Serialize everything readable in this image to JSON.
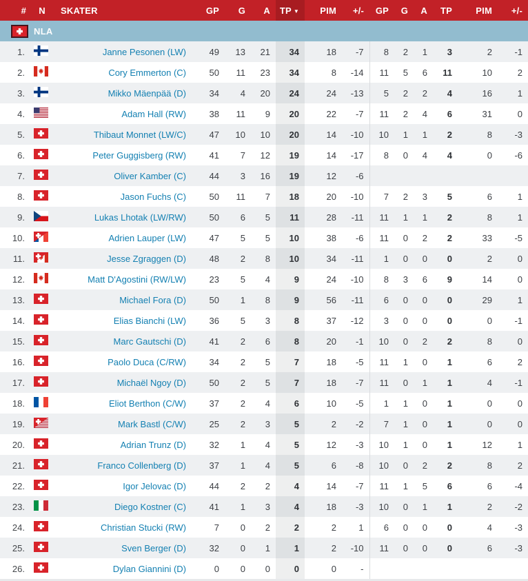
{
  "colors": {
    "header_bg": "#c22127",
    "header_sorted_bg": "#a81c21",
    "league_band_bg": "#92bccf",
    "row_alt_bg": "#eef0f2",
    "link_color": "#1480b2",
    "tp_column_tint": "rgba(33,37,45,0.075)",
    "group_divider": "#d9dbde"
  },
  "table": {
    "sort": {
      "column": "tp1",
      "direction": "desc",
      "arrow": "▼"
    },
    "columns": [
      {
        "id": "rank",
        "label": "#"
      },
      {
        "id": "flag",
        "label": "N"
      },
      {
        "id": "name",
        "label": "SKATER"
      },
      {
        "id": "gp1",
        "label": "GP"
      },
      {
        "id": "g1",
        "label": "G"
      },
      {
        "id": "a1",
        "label": "A"
      },
      {
        "id": "tp1",
        "label": "TP",
        "sorted": true
      },
      {
        "id": "pim1",
        "label": "PIM"
      },
      {
        "id": "pm1",
        "label": "+/-"
      },
      {
        "id": "gp2",
        "label": "GP"
      },
      {
        "id": "g2",
        "label": "G"
      },
      {
        "id": "a2",
        "label": "A"
      },
      {
        "id": "tp2",
        "label": "TP"
      },
      {
        "id": "pim2",
        "label": "PIM"
      },
      {
        "id": "pm2",
        "label": "+/-"
      }
    ],
    "league_section": {
      "label": "NLA",
      "flag": "ch",
      "flag_name": "switzerland-flag-icon"
    },
    "players": [
      {
        "rank": "1.",
        "flag": "fi",
        "flag_name": "finland-flag-icon",
        "name": "Janne Pesonen (LW)",
        "stats": {
          "gp1": "49",
          "g1": "13",
          "a1": "21",
          "tp1": "34",
          "pim1": "18",
          "pm1": "-7",
          "gp2": "8",
          "g2": "2",
          "a2": "1",
          "tp2": "3",
          "pim2": "2",
          "pm2": "-1"
        }
      },
      {
        "rank": "2.",
        "flag": "ca",
        "flag_name": "canada-flag-icon",
        "name": "Cory Emmerton (C)",
        "stats": {
          "gp1": "50",
          "g1": "11",
          "a1": "23",
          "tp1": "34",
          "pim1": "8",
          "pm1": "-14",
          "gp2": "11",
          "g2": "5",
          "a2": "6",
          "tp2": "11",
          "pim2": "10",
          "pm2": "2"
        }
      },
      {
        "rank": "3.",
        "flag": "fi",
        "flag_name": "finland-flag-icon",
        "name": "Mikko Mäenpää (D)",
        "stats": {
          "gp1": "34",
          "g1": "4",
          "a1": "20",
          "tp1": "24",
          "pim1": "24",
          "pm1": "-13",
          "gp2": "5",
          "g2": "2",
          "a2": "2",
          "tp2": "4",
          "pim2": "16",
          "pm2": "1"
        }
      },
      {
        "rank": "4.",
        "flag": "us",
        "flag_name": "usa-flag-icon",
        "name": "Adam Hall (RW)",
        "stats": {
          "gp1": "38",
          "g1": "11",
          "a1": "9",
          "tp1": "20",
          "pim1": "22",
          "pm1": "-7",
          "gp2": "11",
          "g2": "2",
          "a2": "4",
          "tp2": "6",
          "pim2": "31",
          "pm2": "0"
        }
      },
      {
        "rank": "5.",
        "flag": "ch",
        "flag_name": "switzerland-flag-icon",
        "name": "Thibaut Monnet (LW/C)",
        "stats": {
          "gp1": "47",
          "g1": "10",
          "a1": "10",
          "tp1": "20",
          "pim1": "14",
          "pm1": "-10",
          "gp2": "10",
          "g2": "1",
          "a2": "1",
          "tp2": "2",
          "pim2": "8",
          "pm2": "-3"
        }
      },
      {
        "rank": "6.",
        "flag": "ch",
        "flag_name": "switzerland-flag-icon",
        "name": "Peter Guggisberg (RW)",
        "stats": {
          "gp1": "41",
          "g1": "7",
          "a1": "12",
          "tp1": "19",
          "pim1": "14",
          "pm1": "-17",
          "gp2": "8",
          "g2": "0",
          "a2": "4",
          "tp2": "4",
          "pim2": "0",
          "pm2": "-6"
        }
      },
      {
        "rank": "7.",
        "flag": "ch",
        "flag_name": "switzerland-flag-icon",
        "name": "Oliver Kamber (C)",
        "stats": {
          "gp1": "44",
          "g1": "3",
          "a1": "16",
          "tp1": "19",
          "pim1": "12",
          "pm1": "-6",
          "gp2": "",
          "g2": "",
          "a2": "",
          "tp2": "",
          "pim2": "",
          "pm2": ""
        }
      },
      {
        "rank": "8.",
        "flag": "ch",
        "flag_name": "switzerland-flag-icon",
        "name": "Jason Fuchs (C)",
        "stats": {
          "gp1": "50",
          "g1": "11",
          "a1": "7",
          "tp1": "18",
          "pim1": "20",
          "pm1": "-10",
          "gp2": "7",
          "g2": "2",
          "a2": "3",
          "tp2": "5",
          "pim2": "6",
          "pm2": "1"
        }
      },
      {
        "rank": "9.",
        "flag": "cz",
        "flag_name": "czechia-flag-icon",
        "name": "Lukas Lhotak (LW/RW)",
        "stats": {
          "gp1": "50",
          "g1": "6",
          "a1": "5",
          "tp1": "11",
          "pim1": "28",
          "pm1": "-11",
          "gp2": "11",
          "g2": "1",
          "a2": "1",
          "tp2": "2",
          "pim2": "8",
          "pm2": "1"
        }
      },
      {
        "rank": "10.",
        "flag": "ch-fr",
        "flag_name": "switzerland-france-flag-icon",
        "name": "Adrien Lauper (LW)",
        "stats": {
          "gp1": "47",
          "g1": "5",
          "a1": "5",
          "tp1": "10",
          "pim1": "38",
          "pm1": "-6",
          "gp2": "11",
          "g2": "0",
          "a2": "2",
          "tp2": "2",
          "pim2": "33",
          "pm2": "-5"
        }
      },
      {
        "rank": "11.",
        "flag": "ch-ca",
        "flag_name": "switzerland-canada-flag-icon",
        "name": "Jesse Zgraggen (D)",
        "stats": {
          "gp1": "48",
          "g1": "2",
          "a1": "8",
          "tp1": "10",
          "pim1": "34",
          "pm1": "-11",
          "gp2": "1",
          "g2": "0",
          "a2": "0",
          "tp2": "0",
          "pim2": "2",
          "pm2": "0"
        }
      },
      {
        "rank": "12.",
        "flag": "ca",
        "flag_name": "canada-flag-icon",
        "name": "Matt D'Agostini (RW/LW)",
        "stats": {
          "gp1": "23",
          "g1": "5",
          "a1": "4",
          "tp1": "9",
          "pim1": "24",
          "pm1": "-10",
          "gp2": "8",
          "g2": "3",
          "a2": "6",
          "tp2": "9",
          "pim2": "14",
          "pm2": "0"
        }
      },
      {
        "rank": "13.",
        "flag": "ch",
        "flag_name": "switzerland-flag-icon",
        "name": "Michael Fora (D)",
        "stats": {
          "gp1": "50",
          "g1": "1",
          "a1": "8",
          "tp1": "9",
          "pim1": "56",
          "pm1": "-11",
          "gp2": "6",
          "g2": "0",
          "a2": "0",
          "tp2": "0",
          "pim2": "29",
          "pm2": "1"
        }
      },
      {
        "rank": "14.",
        "flag": "ch",
        "flag_name": "switzerland-flag-icon",
        "name": "Elias Bianchi (LW)",
        "stats": {
          "gp1": "36",
          "g1": "5",
          "a1": "3",
          "tp1": "8",
          "pim1": "37",
          "pm1": "-12",
          "gp2": "3",
          "g2": "0",
          "a2": "0",
          "tp2": "0",
          "pim2": "0",
          "pm2": "-1"
        }
      },
      {
        "rank": "15.",
        "flag": "ch",
        "flag_name": "switzerland-flag-icon",
        "name": "Marc Gautschi (D)",
        "stats": {
          "gp1": "41",
          "g1": "2",
          "a1": "6",
          "tp1": "8",
          "pim1": "20",
          "pm1": "-1",
          "gp2": "10",
          "g2": "0",
          "a2": "2",
          "tp2": "2",
          "pim2": "8",
          "pm2": "0"
        }
      },
      {
        "rank": "16.",
        "flag": "ch",
        "flag_name": "switzerland-flag-icon",
        "name": "Paolo Duca (C/RW)",
        "stats": {
          "gp1": "34",
          "g1": "2",
          "a1": "5",
          "tp1": "7",
          "pim1": "18",
          "pm1": "-5",
          "gp2": "11",
          "g2": "1",
          "a2": "0",
          "tp2": "1",
          "pim2": "6",
          "pm2": "2"
        }
      },
      {
        "rank": "17.",
        "flag": "ch",
        "flag_name": "switzerland-flag-icon",
        "name": "Michaël Ngoy (D)",
        "stats": {
          "gp1": "50",
          "g1": "2",
          "a1": "5",
          "tp1": "7",
          "pim1": "18",
          "pm1": "-7",
          "gp2": "11",
          "g2": "0",
          "a2": "1",
          "tp2": "1",
          "pim2": "4",
          "pm2": "-1"
        }
      },
      {
        "rank": "18.",
        "flag": "fr",
        "flag_name": "france-flag-icon",
        "name": "Eliot Berthon (C/W)",
        "stats": {
          "gp1": "37",
          "g1": "2",
          "a1": "4",
          "tp1": "6",
          "pim1": "10",
          "pm1": "-5",
          "gp2": "1",
          "g2": "1",
          "a2": "0",
          "tp2": "1",
          "pim2": "0",
          "pm2": "0"
        }
      },
      {
        "rank": "19.",
        "flag": "ch-us",
        "flag_name": "switzerland-usa-flag-icon",
        "name": "Mark Bastl (C/W)",
        "stats": {
          "gp1": "25",
          "g1": "2",
          "a1": "3",
          "tp1": "5",
          "pim1": "2",
          "pm1": "-2",
          "gp2": "7",
          "g2": "1",
          "a2": "0",
          "tp2": "1",
          "pim2": "0",
          "pm2": "0"
        }
      },
      {
        "rank": "20.",
        "flag": "ch",
        "flag_name": "switzerland-flag-icon",
        "name": "Adrian Trunz (D)",
        "stats": {
          "gp1": "32",
          "g1": "1",
          "a1": "4",
          "tp1": "5",
          "pim1": "12",
          "pm1": "-3",
          "gp2": "10",
          "g2": "1",
          "a2": "0",
          "tp2": "1",
          "pim2": "12",
          "pm2": "1"
        }
      },
      {
        "rank": "21.",
        "flag": "ch",
        "flag_name": "switzerland-flag-icon",
        "name": "Franco Collenberg (D)",
        "stats": {
          "gp1": "37",
          "g1": "1",
          "a1": "4",
          "tp1": "5",
          "pim1": "6",
          "pm1": "-8",
          "gp2": "10",
          "g2": "0",
          "a2": "2",
          "tp2": "2",
          "pim2": "8",
          "pm2": "2"
        }
      },
      {
        "rank": "22.",
        "flag": "ch",
        "flag_name": "switzerland-flag-icon",
        "name": "Igor Jelovac (D)",
        "stats": {
          "gp1": "44",
          "g1": "2",
          "a1": "2",
          "tp1": "4",
          "pim1": "14",
          "pm1": "-7",
          "gp2": "11",
          "g2": "1",
          "a2": "5",
          "tp2": "6",
          "pim2": "6",
          "pm2": "-4"
        }
      },
      {
        "rank": "23.",
        "flag": "it",
        "flag_name": "italy-flag-icon",
        "name": "Diego Kostner (C)",
        "stats": {
          "gp1": "41",
          "g1": "1",
          "a1": "3",
          "tp1": "4",
          "pim1": "18",
          "pm1": "-3",
          "gp2": "10",
          "g2": "0",
          "a2": "1",
          "tp2": "1",
          "pim2": "2",
          "pm2": "-2"
        }
      },
      {
        "rank": "24.",
        "flag": "ch",
        "flag_name": "switzerland-flag-icon",
        "name": "Christian Stucki (RW)",
        "stats": {
          "gp1": "7",
          "g1": "0",
          "a1": "2",
          "tp1": "2",
          "pim1": "2",
          "pm1": "1",
          "gp2": "6",
          "g2": "0",
          "a2": "0",
          "tp2": "0",
          "pim2": "4",
          "pm2": "-3"
        }
      },
      {
        "rank": "25.",
        "flag": "ch",
        "flag_name": "switzerland-flag-icon",
        "name": "Sven Berger (D)",
        "stats": {
          "gp1": "32",
          "g1": "0",
          "a1": "1",
          "tp1": "1",
          "pim1": "2",
          "pm1": "-10",
          "gp2": "11",
          "g2": "0",
          "a2": "0",
          "tp2": "0",
          "pim2": "6",
          "pm2": "-3"
        }
      },
      {
        "rank": "26.",
        "flag": "ch",
        "flag_name": "switzerland-flag-icon",
        "name": "Dylan Giannini (D)",
        "stats": {
          "gp1": "0",
          "g1": "0",
          "a1": "0",
          "tp1": "0",
          "pim1": "0",
          "pm1": "-",
          "gp2": "",
          "g2": "",
          "a2": "",
          "tp2": "",
          "pim2": "",
          "pm2": ""
        }
      }
    ]
  }
}
